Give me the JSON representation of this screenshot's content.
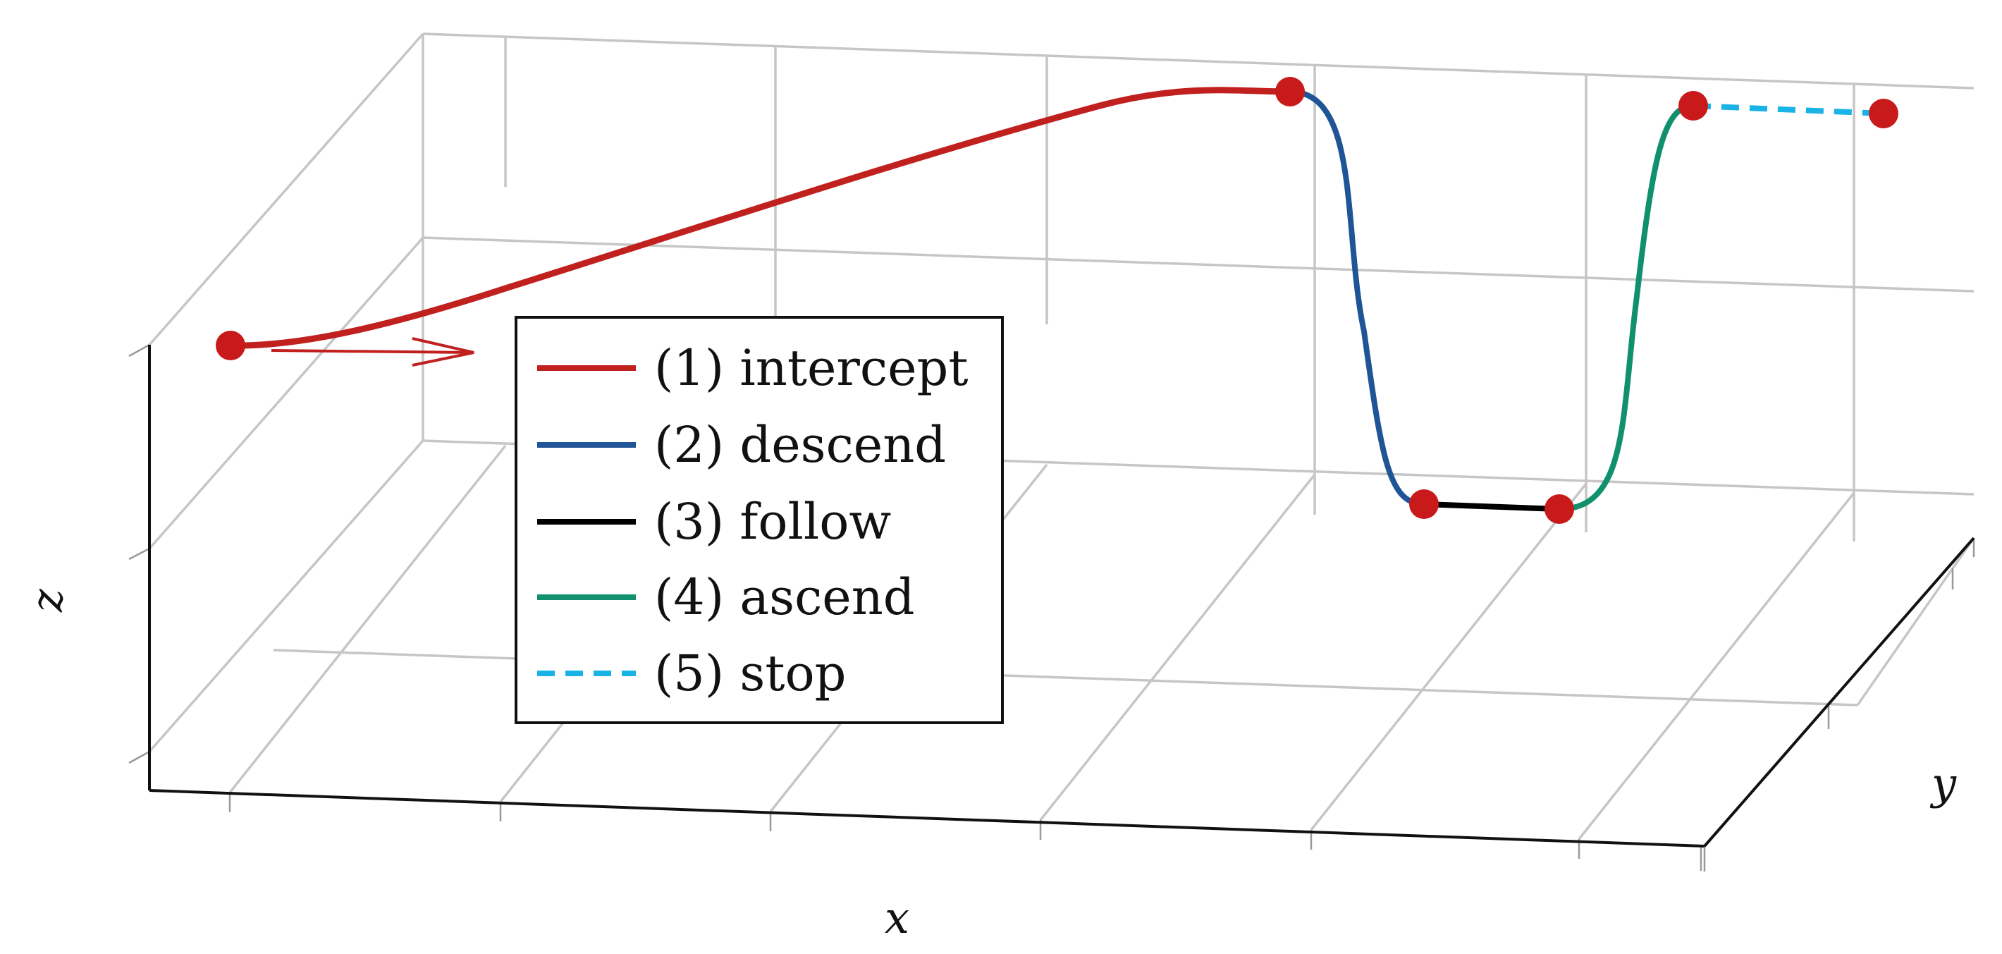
{
  "axes": {
    "x_label": "x",
    "y_label": "y",
    "z_label": "z"
  },
  "legend": {
    "items": [
      {
        "label": "(1) intercept",
        "color": "#c0201e",
        "style": "solid"
      },
      {
        "label": "(2) descend",
        "color": "#1f5596",
        "style": "solid"
      },
      {
        "label": "(3) follow",
        "color": "#000000",
        "style": "solid"
      },
      {
        "label": "(4) ascend",
        "color": "#11906d",
        "style": "solid"
      },
      {
        "label": "(5) stop",
        "color": "#1ab3e5",
        "style": "dashed"
      }
    ]
  },
  "colors": {
    "grid": "#c6c6c6",
    "waypoint": "#c81a1a",
    "arrow": "#c0201e"
  }
}
